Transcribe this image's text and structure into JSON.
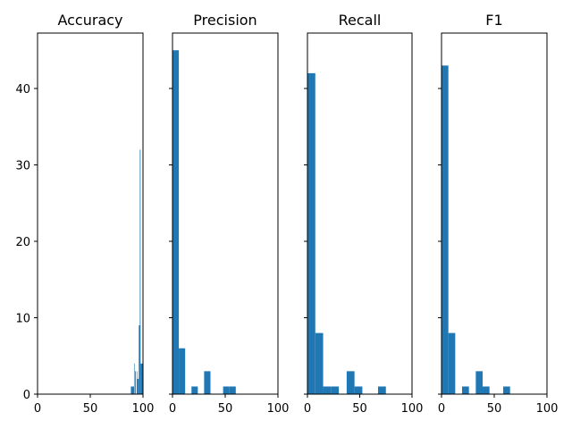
{
  "chart_data": [
    {
      "type": "bar",
      "title": "Accuracy",
      "xlim": [
        0,
        100
      ],
      "ylim": [
        0,
        47.25
      ],
      "x_ticks": [
        0,
        50,
        100
      ],
      "y_ticks": [
        0,
        10,
        20,
        30,
        40
      ],
      "show_y_tick_labels": true,
      "bins": [
        {
          "x0": 88.5,
          "x1": 91.5,
          "value": 1
        },
        {
          "x0": 91.5,
          "x1": 92.0,
          "value": 4
        },
        {
          "x0": 92.5,
          "x1": 93.2,
          "value": 3
        },
        {
          "x0": 94.0,
          "x1": 94.5,
          "value": 3
        },
        {
          "x0": 94.5,
          "x1": 95.0,
          "value": 2
        },
        {
          "x0": 95.0,
          "x1": 96.0,
          "value": 2
        },
        {
          "x0": 96.0,
          "x1": 97.0,
          "value": 9
        },
        {
          "x0": 97.0,
          "x1": 97.7,
          "value": 32
        },
        {
          "x0": 97.7,
          "x1": 100.0,
          "value": 4
        }
      ]
    },
    {
      "type": "bar",
      "title": "Precision",
      "xlim": [
        0,
        100
      ],
      "ylim": [
        0,
        47.25
      ],
      "x_ticks": [
        0,
        50,
        100
      ],
      "y_ticks": [
        0,
        10,
        20,
        30,
        40
      ],
      "show_y_tick_labels": false,
      "bins": [
        {
          "x0": 0,
          "x1": 6,
          "value": 45
        },
        {
          "x0": 6,
          "x1": 12,
          "value": 6
        },
        {
          "x0": 12,
          "x1": 18,
          "value": 0
        },
        {
          "x0": 18,
          "x1": 24,
          "value": 1
        },
        {
          "x0": 24,
          "x1": 30,
          "value": 0
        },
        {
          "x0": 30,
          "x1": 36,
          "value": 3
        },
        {
          "x0": 36,
          "x1": 42,
          "value": 0
        },
        {
          "x0": 42,
          "x1": 48,
          "value": 0
        },
        {
          "x0": 48,
          "x1": 54,
          "value": 1
        },
        {
          "x0": 54,
          "x1": 60,
          "value": 1
        }
      ]
    },
    {
      "type": "bar",
      "title": "Recall",
      "xlim": [
        0,
        100
      ],
      "ylim": [
        0,
        47.25
      ],
      "x_ticks": [
        0,
        50,
        100
      ],
      "y_ticks": [
        0,
        10,
        20,
        30,
        40
      ],
      "show_y_tick_labels": false,
      "bins": [
        {
          "x0": 0,
          "x1": 7.5,
          "value": 42
        },
        {
          "x0": 7.5,
          "x1": 15,
          "value": 8
        },
        {
          "x0": 15,
          "x1": 22.5,
          "value": 1
        },
        {
          "x0": 22.5,
          "x1": 30,
          "value": 1
        },
        {
          "x0": 30,
          "x1": 37.5,
          "value": 0
        },
        {
          "x0": 37.5,
          "x1": 45,
          "value": 3
        },
        {
          "x0": 45,
          "x1": 52.5,
          "value": 1
        },
        {
          "x0": 52.5,
          "x1": 60,
          "value": 0
        },
        {
          "x0": 60,
          "x1": 67.5,
          "value": 0
        },
        {
          "x0": 67.5,
          "x1": 75,
          "value": 1
        }
      ]
    },
    {
      "type": "bar",
      "title": "F1",
      "xlim": [
        0,
        100
      ],
      "ylim": [
        0,
        47.25
      ],
      "x_ticks": [
        0,
        50,
        100
      ],
      "y_ticks": [
        0,
        10,
        20,
        30,
        40
      ],
      "show_y_tick_labels": false,
      "bins": [
        {
          "x0": 0,
          "x1": 6.5,
          "value": 43
        },
        {
          "x0": 6.5,
          "x1": 13,
          "value": 8
        },
        {
          "x0": 13,
          "x1": 19.5,
          "value": 0
        },
        {
          "x0": 19.5,
          "x1": 26,
          "value": 1
        },
        {
          "x0": 26,
          "x1": 32.5,
          "value": 0
        },
        {
          "x0": 32.5,
          "x1": 39,
          "value": 3
        },
        {
          "x0": 39,
          "x1": 45.5,
          "value": 1
        },
        {
          "x0": 45.5,
          "x1": 52,
          "value": 0
        },
        {
          "x0": 52,
          "x1": 58.5,
          "value": 0
        },
        {
          "x0": 58.5,
          "x1": 65,
          "value": 1
        }
      ]
    }
  ],
  "colors": {
    "bar": "#1f77b4",
    "axis": "#000000",
    "background": "#ffffff"
  }
}
